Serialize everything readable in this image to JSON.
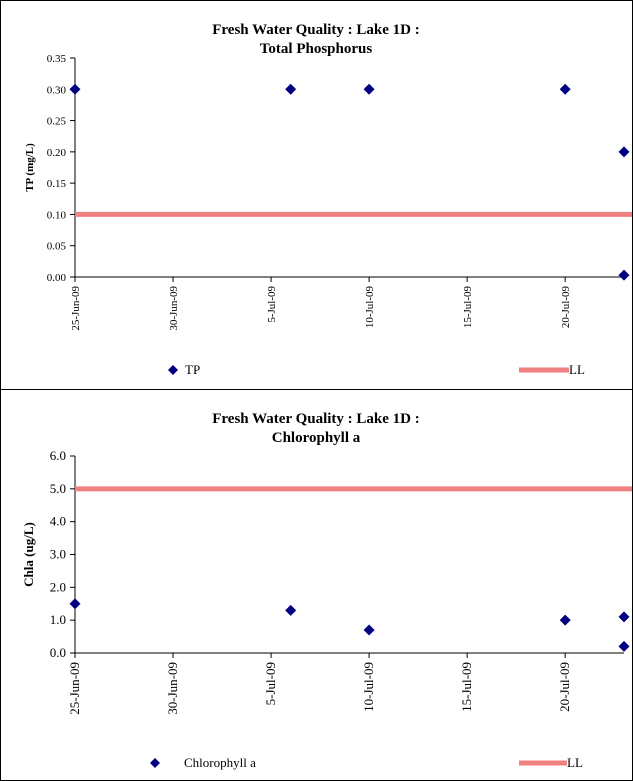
{
  "chart_data": [
    {
      "type": "scatter",
      "title": "Fresh Water Quality : Lake 1D :",
      "subtitle": "Total Phosphorus",
      "xlabel": "",
      "ylabel": "TP (mg/L)",
      "x_ticks": [
        "25-Jun-09",
        "30-Jun-09",
        "5-Jul-09",
        "10-Jul-09",
        "15-Jul-09",
        "20-Jul-09"
      ],
      "xlim": [
        "2009-06-25",
        "2009-07-23"
      ],
      "ylim": [
        0,
        0.35
      ],
      "y_ticks": [
        "0.00",
        "0.05",
        "0.10",
        "0.15",
        "0.20",
        "0.25",
        "0.30",
        "0.35"
      ],
      "grid": false,
      "legend_position": "bottom",
      "series": [
        {
          "name": "TP",
          "marker": "diamond",
          "color": "#000080",
          "points": [
            {
              "x": "2009-06-25",
              "y": 0.3
            },
            {
              "x": "2009-07-06",
              "y": 0.3
            },
            {
              "x": "2009-07-10",
              "y": 0.3
            },
            {
              "x": "2009-07-20",
              "y": 0.3
            },
            {
              "x": "2009-07-23",
              "y": 0.2
            },
            {
              "x": "2009-07-23",
              "y": 0.003
            }
          ]
        },
        {
          "name": "LL",
          "type": "hline",
          "color": "#f08080",
          "y": 0.1
        }
      ]
    },
    {
      "type": "scatter",
      "title": "Fresh Water Quality : Lake 1D :",
      "subtitle": "Chlorophyll a",
      "xlabel": "",
      "ylabel": "Chla (ug/L)",
      "x_ticks": [
        "25-Jun-09",
        "30-Jun-09",
        "5-Jul-09",
        "10-Jul-09",
        "15-Jul-09",
        "20-Jul-09"
      ],
      "xlim": [
        "2009-06-25",
        "2009-07-23"
      ],
      "ylim": [
        0,
        6
      ],
      "y_ticks": [
        "0.0",
        "1.0",
        "2.0",
        "3.0",
        "4.0",
        "5.0",
        "6.0"
      ],
      "grid": false,
      "legend_position": "bottom",
      "series": [
        {
          "name": "Chlorophyll a",
          "marker": "diamond",
          "color": "#000080",
          "points": [
            {
              "x": "2009-06-25",
              "y": 1.5
            },
            {
              "x": "2009-07-06",
              "y": 1.3
            },
            {
              "x": "2009-07-10",
              "y": 0.7
            },
            {
              "x": "2009-07-20",
              "y": 1.0
            },
            {
              "x": "2009-07-23",
              "y": 1.1
            },
            {
              "x": "2009-07-23",
              "y": 0.2
            }
          ]
        },
        {
          "name": "LL",
          "type": "hline",
          "color": "#f08080",
          "y": 5.0
        }
      ]
    }
  ]
}
